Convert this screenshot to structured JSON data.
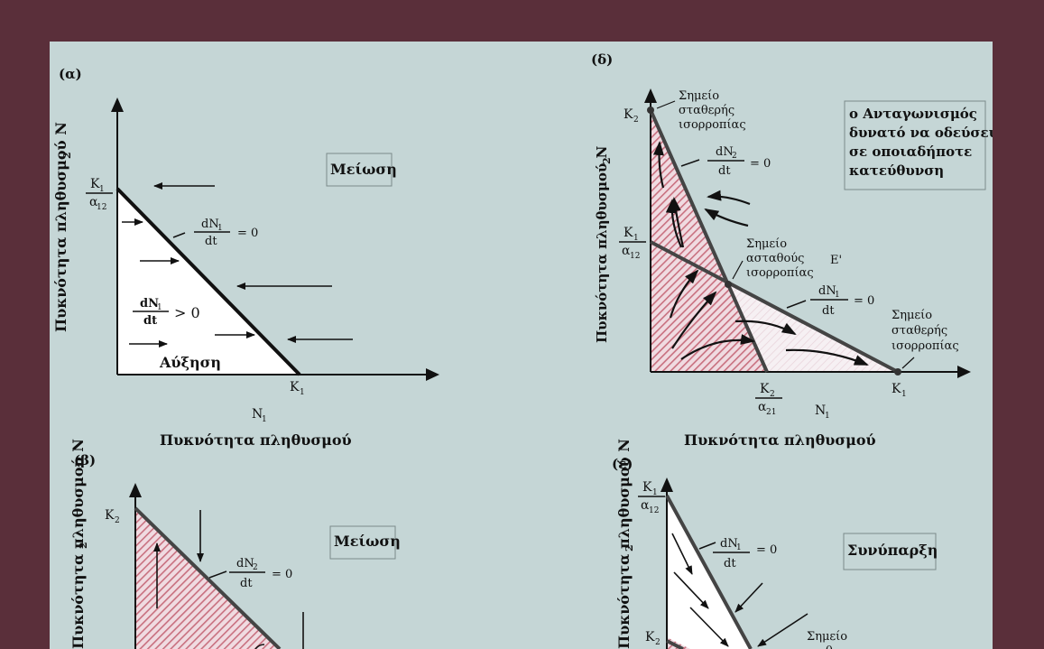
{
  "colors": {
    "frame": "#5a2f3a",
    "panel": "#c5d6d6",
    "hatch_red": "#c8707f",
    "hatch_light": "#f3eaef",
    "line": "#2b2b2b",
    "ink": "#111111"
  },
  "panel_a": {
    "label": "(α)",
    "ylabel": "Πυκνότητα πληθυσμού  N",
    "ylabel_sub": "2",
    "xlabel": "Πυκνότητα πληθυσμού",
    "n_axis": "N",
    "n_axis_sub": "1",
    "k1_alpha_num": "K",
    "k1_alpha_num_sub": "1",
    "k1_alpha_den": "α",
    "k1_alpha_den_sub": "12",
    "k1_label": "K",
    "k1_label_sub": "1",
    "iso_num": "dN",
    "iso_num_sub": "1",
    "iso_den": "dt",
    "iso_eq": "= 0",
    "growth_num": "dN",
    "growth_num_sub": "1",
    "growth_den": "dt",
    "growth_gt": "> 0",
    "decline_box": "Μείωση",
    "growth_text": "Αύξηση"
  },
  "panel_d": {
    "label": "(δ)",
    "ylabel": "Πυκνότητα πληθυσμού  N",
    "ylabel_sub": "2",
    "xlabel": "Πυκνότητα πληθυσμού",
    "n_axis": "N",
    "n_axis_sub": "1",
    "k2_label": "K",
    "k2_label_sub": "2",
    "k1_alpha_num": "K",
    "k1_alpha_num_sub": "1",
    "k1_alpha_den": "α",
    "k1_alpha_den_sub": "12",
    "k2_alpha_num": "K",
    "k2_alpha_num_sub": "2",
    "k2_alpha_den": "α",
    "k2_alpha_den_sub": "21",
    "k1_label": "K",
    "k1_label_sub": "1",
    "stable_top": [
      "Σημείο",
      "σταθερής",
      "ισορροπίας"
    ],
    "unstable": [
      "Σημείο",
      "ασταθούς",
      "ισορροπίας"
    ],
    "stable_right": [
      "Σημείο",
      "σταθερής",
      "ισορροπίας"
    ],
    "e_label": "E'",
    "iso2_num": "dN",
    "iso2_num_sub": "2",
    "iso2_den": "dt",
    "iso2_eq": "= 0",
    "iso1_num": "dN",
    "iso1_num_sub": "1",
    "iso1_den": "dt",
    "iso1_eq": "= 0",
    "box_lines": [
      "ο Ανταγωνισμός",
      "δυνατό να οδεύσει",
      "σε οποιαδήποτε",
      "κατεύθυνση"
    ]
  },
  "panel_b": {
    "label": "(β)",
    "ylabel": "Πυκνότητα πληθυσμού  N",
    "ylabel_sub": "2",
    "k2_label": "K",
    "k2_label_sub": "2",
    "iso_num": "dN",
    "iso_num_sub": "2",
    "iso_den": "dt",
    "iso_eq": "= 0",
    "decline_box": "Μείωση"
  },
  "panel_e": {
    "label": "(ε)",
    "ylabel": "Πυκνότητα πληθυσμού  N",
    "ylabel_sub": "2",
    "k1_alpha_num": "K",
    "k1_alpha_num_sub": "1",
    "k1_alpha_den": "α",
    "k1_alpha_den_sub": "12",
    "k2_label": "K",
    "k2_label_sub": "2",
    "iso_num": "dN",
    "iso_num_sub": "1",
    "iso_den": "dt",
    "iso_eq": "= 0",
    "coexist_box": "Συνύπαρξη",
    "point_label": "Σημείο"
  }
}
